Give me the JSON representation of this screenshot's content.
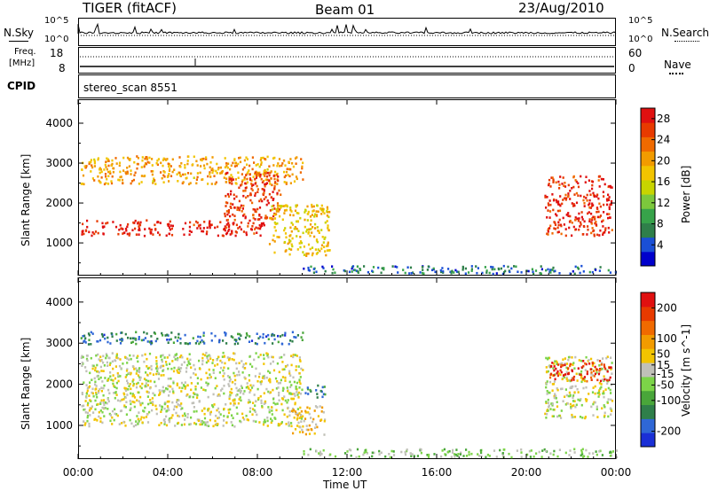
{
  "header": {
    "title": "TIGER (fitACF)",
    "beam": "Beam 01",
    "date": "23/Aug/2010"
  },
  "strips": {
    "nsky": {
      "label": "N.Sky",
      "left_ticks": [
        "10^5",
        "10^0"
      ],
      "right_ticks": [
        "10^5",
        "10^0"
      ],
      "right_label": "N.Search"
    },
    "freq": {
      "label_line1": "Freq.",
      "label_line2": "[MHz]",
      "left_ticks": [
        "18",
        "8"
      ],
      "right_ticks": [
        "60",
        "0"
      ],
      "right_label": "Nave"
    },
    "cpid": {
      "label": "CPID",
      "text": "stereo_scan 8551"
    }
  },
  "panels": {
    "power": {
      "ylabel": "Slant Range [km]",
      "yticks": [
        "4000",
        "3000",
        "2000",
        "1000"
      ],
      "colorbar_title": "Power [dB]",
      "colorbar_ticks": [
        "28",
        "24",
        "20",
        "16",
        "12",
        "8",
        "4"
      ],
      "colors": [
        "#0000cc",
        "#1a4fd6",
        "#2f7f4a",
        "#37a34a",
        "#7cc83c",
        "#c8d400",
        "#f2c400",
        "#f29b00",
        "#f06a00",
        "#e83a00",
        "#e01010"
      ]
    },
    "velocity": {
      "ylabel": "Slant Range [km]",
      "yticks": [
        "4000",
        "3000",
        "2000",
        "1000"
      ],
      "colorbar_title": "Velocity [m s^-1]",
      "colorbar_ticks": [
        "200",
        "100",
        "50",
        "15",
        "-15",
        "-50",
        "-100",
        "-200"
      ],
      "colors": [
        "#1a2fd6",
        "#2f67d6",
        "#2f7f4a",
        "#49a63a",
        "#7cd448",
        "#c0c0b8",
        "#f2c400",
        "#f29b00",
        "#f06a00",
        "#e83a00",
        "#e01010"
      ]
    }
  },
  "xaxis": {
    "label": "Time UT",
    "ticks": [
      "00:00",
      "04:00",
      "08:00",
      "12:00",
      "16:00",
      "20:00",
      "00:00"
    ]
  },
  "chart_data": [
    {
      "type": "heatmap",
      "title": "Power",
      "xlabel": "",
      "ylabel": "Slant Range [km]",
      "xlim_hours": [
        0,
        24
      ],
      "ylim": [
        180,
        4600
      ],
      "colorbar": {
        "label": "Power [dB]",
        "range": [
          0,
          30
        ],
        "ticks": [
          4,
          8,
          12,
          16,
          20,
          24,
          28
        ]
      },
      "regions": [
        {
          "t_start": 0.1,
          "t_end": 8.3,
          "r_start": 1200,
          "r_end": 1600,
          "value": 28
        },
        {
          "t_start": 0.1,
          "t_end": 10.0,
          "r_start": 2500,
          "r_end": 3200,
          "value": 20
        },
        {
          "t_start": 6.5,
          "t_end": 9.0,
          "r_start": 1600,
          "r_end": 2800,
          "value": 26
        },
        {
          "t_start": 8.5,
          "t_end": 11.2,
          "r_start": 700,
          "r_end": 2000,
          "value": 18
        },
        {
          "t_start": 10.0,
          "t_end": 24.0,
          "r_start": 250,
          "r_end": 450,
          "value": 6
        },
        {
          "t_start": 20.8,
          "t_end": 23.8,
          "r_start": 1200,
          "r_end": 2700,
          "value": 27
        }
      ]
    },
    {
      "type": "heatmap",
      "title": "Velocity",
      "xlabel": "Time UT",
      "ylabel": "Slant Range [km]",
      "xlim_hours": [
        0,
        24
      ],
      "ylim": [
        180,
        4600
      ],
      "colorbar": {
        "label": "Velocity [m s^-1]",
        "range": [
          -250,
          250
        ],
        "ticks": [
          -200,
          -100,
          -50,
          -15,
          15,
          50,
          100,
          200
        ]
      },
      "regions": [
        {
          "t_start": 0.1,
          "t_end": 10.0,
          "r_start": 3000,
          "r_end": 3300,
          "value": -150
        },
        {
          "t_start": 0.1,
          "t_end": 10.0,
          "r_start": 1000,
          "r_end": 2800,
          "value": 0
        },
        {
          "t_start": 9.5,
          "t_end": 11.0,
          "r_start": 800,
          "r_end": 1500,
          "value": 40
        },
        {
          "t_start": 10.0,
          "t_end": 11.0,
          "r_start": 1700,
          "r_end": 2000,
          "value": -150
        },
        {
          "t_start": 10.0,
          "t_end": 24.0,
          "r_start": 250,
          "r_end": 450,
          "value": -40
        },
        {
          "t_start": 20.8,
          "t_end": 23.8,
          "r_start": 1200,
          "r_end": 2700,
          "value": 0
        },
        {
          "t_start": 21.0,
          "t_end": 23.8,
          "r_start": 2100,
          "r_end": 2600,
          "value": 200
        }
      ]
    }
  ]
}
